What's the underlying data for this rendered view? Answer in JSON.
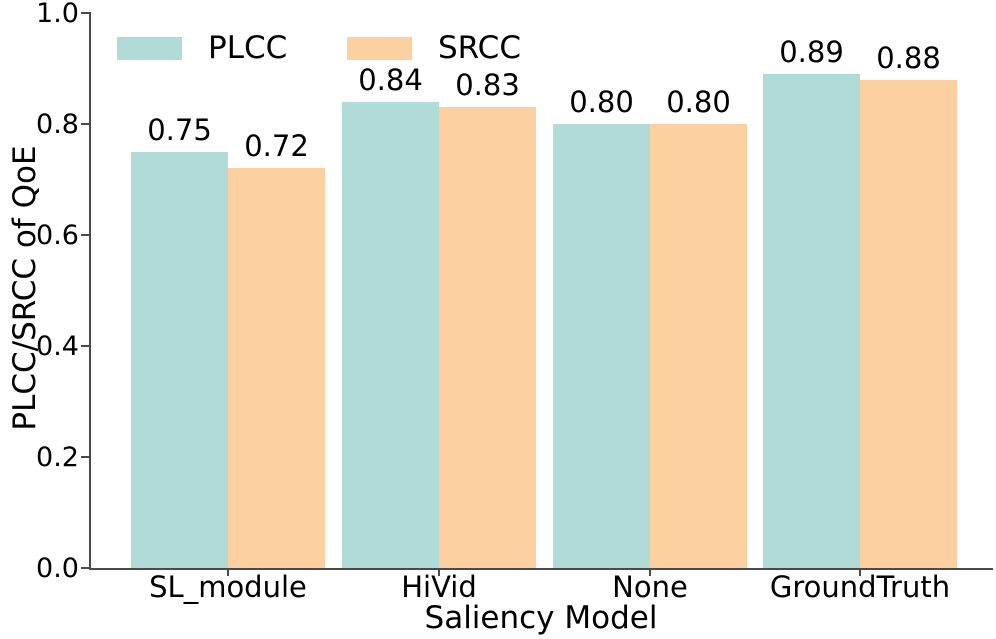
{
  "chart_data": {
    "type": "bar",
    "xlabel": "Saliency Model",
    "ylabel": "PLCC/SRCC of QoE",
    "categories": [
      "SL_module",
      "HiVid",
      "None",
      "GroundTruth"
    ],
    "series": [
      {
        "name": "PLCC",
        "color": "#b0dbd7",
        "values": [
          0.75,
          0.84,
          0.8,
          0.89
        ],
        "labels": [
          "0.75",
          "0.84",
          "0.80",
          "0.89"
        ]
      },
      {
        "name": "SRCC",
        "color": "#fdd0a1",
        "values": [
          0.72,
          0.83,
          0.8,
          0.88
        ],
        "labels": [
          "0.72",
          "0.83",
          "0.80",
          "0.88"
        ]
      }
    ],
    "ylim": [
      0.0,
      1.0
    ],
    "yticks": [
      "0.0",
      "0.2",
      "0.4",
      "0.6",
      "0.8",
      "1.0"
    ],
    "legend_position": "upper-left",
    "grid": false,
    "colors": {
      "axis": "#4a4a4a",
      "text": "#000000",
      "background": "#ffffff"
    }
  }
}
